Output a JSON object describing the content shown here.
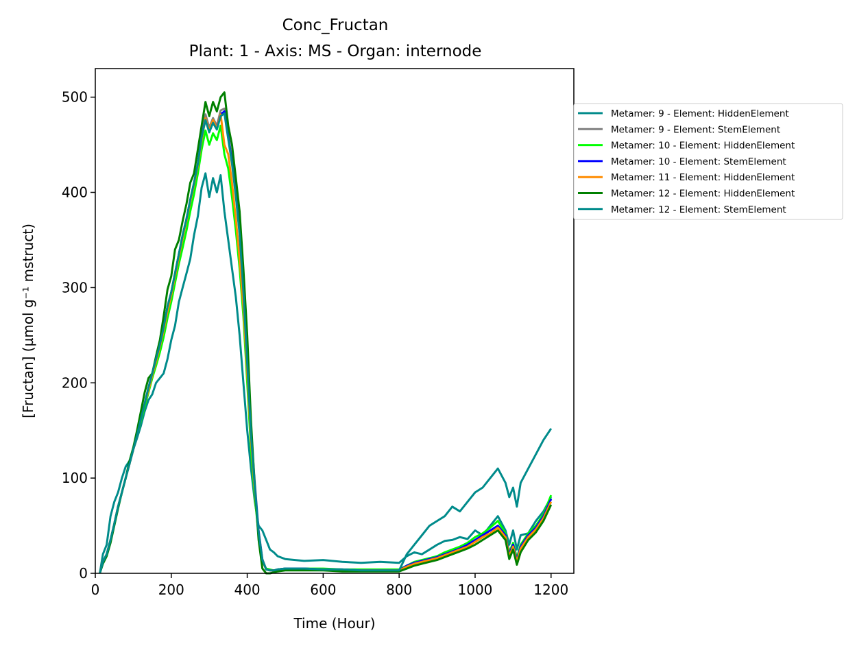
{
  "chart_data": {
    "type": "line",
    "title": "Conc_Fructan",
    "subtitle": "Plant: 1 - Axis: MS - Organ: internode",
    "xlabel": "Time (Hour)",
    "ylabel": "[Fructan] (µmol g⁻¹ mstruct)",
    "xlim": [
      0,
      1260
    ],
    "ylim": [
      0,
      530
    ],
    "xticks": [
      0,
      200,
      400,
      600,
      800,
      1000,
      1200
    ],
    "yticks": [
      0,
      100,
      200,
      300,
      400,
      500
    ],
    "grid": false,
    "legend_position": "outside-right",
    "series": [
      {
        "name": "Metamer: 9 - Element: HiddenElement",
        "color": "#008b8b",
        "x": [
          12,
          20,
          30,
          40,
          50,
          60,
          70,
          80,
          90,
          100,
          110,
          120,
          130,
          140,
          150,
          160,
          170,
          180,
          190,
          200,
          210,
          220,
          230,
          240,
          250,
          260,
          270,
          280,
          290,
          300,
          310,
          320,
          330,
          340,
          350,
          360,
          370,
          380,
          390,
          400,
          410,
          420,
          430,
          440,
          450,
          460,
          470,
          480,
          500,
          550,
          600,
          650,
          700,
          750,
          800,
          820,
          840,
          860,
          880,
          900,
          920,
          940,
          960,
          980,
          1000,
          1020,
          1040,
          1060,
          1080,
          1090,
          1100,
          1110,
          1120,
          1140,
          1160,
          1180,
          1200
        ],
        "y": [
          0,
          20,
          30,
          60,
          75,
          85,
          100,
          112,
          118,
          130,
          142,
          155,
          170,
          182,
          188,
          200,
          205,
          210,
          225,
          245,
          260,
          285,
          300,
          315,
          330,
          355,
          375,
          405,
          420,
          395,
          415,
          400,
          418,
          380,
          350,
          320,
          290,
          250,
          200,
          150,
          110,
          75,
          50,
          45,
          35,
          25,
          22,
          18,
          15,
          13,
          14,
          12,
          11,
          12,
          11,
          18,
          22,
          20,
          25,
          30,
          34,
          35,
          38,
          36,
          45,
          40,
          50,
          60,
          45,
          30,
          45,
          25,
          40,
          42,
          55,
          65,
          80
        ]
      },
      {
        "name": "Metamer: 9 - Element: StemElement",
        "color": "#808080",
        "x": [
          12,
          20,
          30,
          40,
          50,
          60,
          70,
          80,
          90,
          100,
          110,
          120,
          130,
          140,
          150,
          160,
          170,
          180,
          190,
          200,
          210,
          220,
          230,
          240,
          250,
          260,
          270,
          280,
          290,
          300,
          310,
          320,
          330,
          340,
          350,
          360,
          370,
          380,
          390,
          400,
          410,
          420,
          430,
          440,
          450,
          460,
          470,
          480,
          500,
          550,
          600,
          650,
          700,
          750,
          800,
          820,
          840,
          860,
          880,
          900,
          920,
          940,
          960,
          980,
          1000,
          1020,
          1040,
          1060,
          1080,
          1090,
          1100,
          1110,
          1120,
          1140,
          1160,
          1180,
          1200
        ],
        "y": [
          0,
          12,
          20,
          35,
          52,
          70,
          85,
          100,
          115,
          130,
          145,
          162,
          178,
          195,
          210,
          225,
          240,
          258,
          280,
          295,
          315,
          335,
          355,
          372,
          392,
          410,
          430,
          458,
          482,
          468,
          478,
          470,
          486,
          488,
          460,
          435,
          400,
          360,
          300,
          225,
          150,
          95,
          45,
          15,
          4,
          3,
          3,
          4,
          5,
          5,
          4,
          4,
          3,
          3,
          3,
          8,
          11,
          13,
          15,
          17,
          20,
          23,
          26,
          30,
          35,
          40,
          45,
          50,
          40,
          20,
          30,
          14,
          28,
          40,
          48,
          60,
          78
        ]
      },
      {
        "name": "Metamer: 10 - Element: HiddenElement",
        "color": "#00ff00",
        "x": [
          12,
          20,
          30,
          40,
          50,
          60,
          70,
          80,
          90,
          100,
          110,
          120,
          130,
          140,
          150,
          160,
          170,
          180,
          190,
          200,
          210,
          220,
          230,
          240,
          250,
          260,
          270,
          280,
          290,
          300,
          310,
          320,
          330,
          340,
          350,
          360,
          370,
          380,
          390,
          400,
          410,
          420,
          430,
          440,
          450,
          460,
          470,
          480,
          500,
          550,
          600,
          650,
          700,
          750,
          800,
          820,
          840,
          860,
          880,
          900,
          920,
          940,
          960,
          980,
          1000,
          1020,
          1040,
          1060,
          1080,
          1090,
          1100,
          1110,
          1120,
          1140,
          1160,
          1180,
          1200
        ],
        "y": [
          0,
          12,
          20,
          35,
          52,
          70,
          85,
          100,
          115,
          130,
          145,
          160,
          175,
          190,
          205,
          218,
          232,
          248,
          268,
          285,
          305,
          325,
          342,
          360,
          380,
          398,
          420,
          445,
          465,
          450,
          462,
          455,
          470,
          440,
          425,
          395,
          360,
          320,
          270,
          200,
          130,
          80,
          40,
          12,
          5,
          4,
          3,
          4,
          5,
          5,
          5,
          4,
          4,
          4,
          4,
          8,
          12,
          14,
          16,
          18,
          22,
          25,
          28,
          32,
          38,
          42,
          48,
          55,
          42,
          22,
          32,
          16,
          30,
          42,
          50,
          62,
          82
        ]
      },
      {
        "name": "Metamer: 10 - Element: StemElement",
        "color": "#0000ff",
        "x": [
          12,
          20,
          30,
          40,
          50,
          60,
          70,
          80,
          90,
          100,
          110,
          120,
          130,
          140,
          150,
          160,
          170,
          180,
          190,
          200,
          210,
          220,
          230,
          240,
          250,
          260,
          270,
          280,
          290,
          300,
          310,
          320,
          330,
          340,
          350,
          360,
          370,
          380,
          390,
          400,
          410,
          420,
          430,
          440,
          450,
          460,
          470,
          480,
          500,
          550,
          600,
          650,
          700,
          750,
          800,
          820,
          840,
          860,
          880,
          900,
          920,
          940,
          960,
          980,
          1000,
          1020,
          1040,
          1060,
          1080,
          1090,
          1100,
          1110,
          1120,
          1140,
          1160,
          1180,
          1200
        ],
        "y": [
          0,
          12,
          20,
          35,
          52,
          70,
          85,
          100,
          115,
          130,
          145,
          162,
          178,
          195,
          210,
          225,
          240,
          258,
          280,
          295,
          315,
          335,
          355,
          372,
          392,
          410,
          430,
          458,
          478,
          465,
          475,
          468,
          482,
          485,
          458,
          432,
          398,
          358,
          298,
          222,
          148,
          92,
          44,
          14,
          4,
          3,
          3,
          4,
          5,
          5,
          4,
          4,
          3,
          3,
          3,
          8,
          11,
          13,
          15,
          17,
          20,
          23,
          26,
          30,
          35,
          40,
          45,
          50,
          40,
          20,
          30,
          14,
          28,
          40,
          48,
          60,
          78
        ]
      },
      {
        "name": "Metamer: 11 - Element: HiddenElement",
        "color": "#ff8c00",
        "x": [
          12,
          20,
          30,
          40,
          50,
          60,
          70,
          80,
          90,
          100,
          110,
          120,
          130,
          140,
          150,
          160,
          170,
          180,
          190,
          200,
          210,
          220,
          230,
          240,
          250,
          260,
          270,
          280,
          290,
          300,
          310,
          320,
          330,
          340,
          350,
          360,
          370,
          380,
          390,
          400,
          410,
          420,
          430,
          440,
          450,
          460,
          470,
          480,
          500,
          550,
          600,
          650,
          700,
          750,
          800,
          820,
          840,
          860,
          880,
          900,
          920,
          940,
          960,
          980,
          1000,
          1020,
          1040,
          1060,
          1080,
          1090,
          1100,
          1110,
          1120,
          1140,
          1160,
          1180,
          1200
        ],
        "y": [
          0,
          12,
          20,
          35,
          52,
          70,
          85,
          100,
          115,
          130,
          145,
          162,
          178,
          192,
          208,
          222,
          238,
          255,
          275,
          292,
          312,
          332,
          352,
          370,
          390,
          408,
          428,
          455,
          478,
          465,
          476,
          467,
          482,
          450,
          440,
          410,
          372,
          330,
          280,
          210,
          140,
          85,
          42,
          13,
          4,
          3,
          3,
          3,
          4,
          4,
          4,
          3,
          3,
          3,
          3,
          7,
          10,
          12,
          14,
          16,
          19,
          22,
          25,
          28,
          33,
          38,
          42,
          48,
          38,
          18,
          28,
          12,
          26,
          38,
          46,
          58,
          75
        ]
      },
      {
        "name": "Metamer: 12 - Element: HiddenElement",
        "color": "#008000",
        "x": [
          12,
          20,
          30,
          40,
          50,
          60,
          70,
          80,
          90,
          100,
          110,
          120,
          130,
          140,
          150,
          160,
          170,
          180,
          190,
          200,
          210,
          220,
          230,
          240,
          250,
          260,
          270,
          280,
          290,
          300,
          310,
          320,
          330,
          340,
          350,
          360,
          370,
          380,
          390,
          400,
          410,
          420,
          430,
          440,
          450,
          460,
          470,
          480,
          500,
          550,
          600,
          650,
          700,
          750,
          800,
          820,
          840,
          860,
          880,
          900,
          920,
          940,
          960,
          980,
          1000,
          1020,
          1040,
          1060,
          1080,
          1090,
          1100,
          1110,
          1120,
          1140,
          1160,
          1180,
          1200
        ],
        "y": [
          0,
          10,
          18,
          32,
          50,
          68,
          85,
          100,
          118,
          132,
          150,
          170,
          190,
          205,
          210,
          228,
          245,
          270,
          298,
          312,
          340,
          350,
          370,
          388,
          410,
          420,
          445,
          470,
          495,
          480,
          495,
          485,
          500,
          505,
          470,
          450,
          415,
          380,
          320,
          250,
          160,
          90,
          35,
          5,
          0,
          0,
          1,
          2,
          3,
          3,
          3,
          2,
          2,
          2,
          2,
          5,
          8,
          10,
          12,
          14,
          17,
          20,
          23,
          26,
          30,
          35,
          40,
          45,
          35,
          15,
          25,
          9,
          22,
          35,
          43,
          55,
          72
        ]
      },
      {
        "name": "Metamer: 12 - Element: StemElement",
        "color": "#008b8b",
        "x": [
          12,
          20,
          30,
          40,
          50,
          60,
          70,
          80,
          90,
          100,
          110,
          120,
          130,
          140,
          150,
          160,
          170,
          180,
          190,
          200,
          210,
          220,
          230,
          240,
          250,
          260,
          270,
          280,
          290,
          300,
          310,
          320,
          330,
          340,
          350,
          360,
          370,
          380,
          390,
          400,
          410,
          420,
          430,
          440,
          450,
          460,
          470,
          480,
          500,
          550,
          600,
          650,
          700,
          750,
          800,
          820,
          840,
          860,
          880,
          900,
          920,
          940,
          960,
          980,
          1000,
          1020,
          1040,
          1060,
          1080,
          1090,
          1100,
          1110,
          1120,
          1140,
          1160,
          1180,
          1200
        ],
        "y": [
          0,
          12,
          20,
          35,
          52,
          70,
          85,
          100,
          115,
          130,
          145,
          162,
          178,
          195,
          210,
          225,
          240,
          258,
          280,
          295,
          315,
          335,
          355,
          372,
          392,
          410,
          430,
          458,
          476,
          463,
          473,
          466,
          480,
          483,
          456,
          430,
          396,
          356,
          296,
          220,
          146,
          90,
          43,
          14,
          4,
          3,
          3,
          4,
          5,
          5,
          4,
          4,
          3,
          3,
          3,
          20,
          30,
          40,
          50,
          55,
          60,
          70,
          65,
          75,
          85,
          90,
          100,
          110,
          95,
          80,
          90,
          70,
          95,
          110,
          125,
          140,
          152
        ]
      }
    ]
  }
}
